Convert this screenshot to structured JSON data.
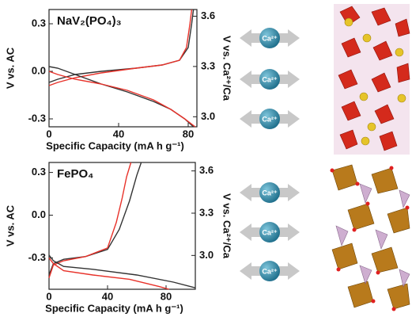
{
  "chart_data": [
    {
      "type": "line",
      "title": "NaV₂(PO₄)₃",
      "x_label": "Specific Capacity (mA h g⁻¹)",
      "y_label": "V vs. AC",
      "y2_label": "V vs. Ca²⁺/Ca",
      "xlim": [
        0,
        85
      ],
      "xticks": [
        0,
        40,
        80
      ],
      "ylim": [
        -0.35,
        0.39
      ],
      "yticks": [
        -0.3,
        {
          "value": 0,
          "label": "0.0"
        },
        0.3
      ],
      "y2lim": [
        2.94,
        3.64
      ],
      "y2ticks": [
        {
          "value": 3,
          "label": "3.0"
        },
        3.3,
        3.6
      ],
      "series": [
        {
          "color": "#333333",
          "x": [
            0,
            5,
            15,
            30,
            50,
            65,
            75,
            80,
            82,
            83
          ],
          "values": [
            -0.07,
            -0.05,
            -0.02,
            0.0,
            0.02,
            0.04,
            0.07,
            0.15,
            0.3,
            0.39
          ]
        },
        {
          "color": "#e8322a",
          "x": [
            0,
            5,
            15,
            30,
            50,
            65,
            75,
            79,
            81,
            82
          ],
          "values": [
            -0.09,
            -0.07,
            -0.04,
            -0.01,
            0.02,
            0.04,
            0.07,
            0.15,
            0.3,
            0.39
          ]
        },
        {
          "color": "#333333",
          "x": [
            0,
            5,
            15,
            30,
            45,
            60,
            70,
            78,
            83
          ],
          "values": [
            0.03,
            0.02,
            -0.02,
            -0.08,
            -0.13,
            -0.19,
            -0.24,
            -0.3,
            -0.35
          ]
        },
        {
          "color": "#e8322a",
          "x": [
            0,
            5,
            15,
            30,
            45,
            60,
            70,
            78,
            84
          ],
          "values": [
            0.0,
            -0.02,
            -0.05,
            -0.08,
            -0.12,
            -0.18,
            -0.24,
            -0.3,
            -0.35
          ]
        }
      ]
    },
    {
      "type": "line",
      "title": "FePO₄",
      "x_label": "Specific Capacity (mA h g⁻¹)",
      "y_label": "V vs. AC",
      "y2_label": "V vs. Ca²⁺/Ca",
      "xlim": [
        0,
        100
      ],
      "xticks": [
        0,
        40,
        80
      ],
      "ylim": [
        -0.52,
        0.37
      ],
      "yticks": [
        -0.3,
        {
          "value": 0,
          "label": "0.0"
        },
        0.3
      ],
      "y2lim": [
        2.76,
        3.66
      ],
      "y2ticks": [
        {
          "value": 3,
          "label": "3.0"
        },
        3.3,
        3.6
      ],
      "series": [
        {
          "color": "#333333",
          "x": [
            0,
            3,
            10,
            25,
            40,
            48,
            55,
            60,
            63
          ],
          "values": [
            -0.42,
            -0.34,
            -0.31,
            -0.29,
            -0.24,
            -0.1,
            0.1,
            0.28,
            0.37
          ]
        },
        {
          "color": "#e8322a",
          "x": [
            0,
            3,
            10,
            25,
            40,
            46,
            50,
            53,
            56
          ],
          "values": [
            -0.44,
            -0.35,
            -0.32,
            -0.29,
            -0.23,
            -0.05,
            0.12,
            0.27,
            0.37
          ]
        },
        {
          "color": "#333333",
          "x": [
            0,
            3,
            10,
            30,
            60,
            85,
            100
          ],
          "values": [
            -0.28,
            -0.32,
            -0.36,
            -0.38,
            -0.42,
            -0.47,
            -0.51
          ]
        },
        {
          "color": "#e8322a",
          "x": [
            0,
            3,
            10,
            30,
            55,
            75,
            82
          ],
          "values": [
            -0.3,
            -0.34,
            -0.39,
            -0.42,
            -0.45,
            -0.5,
            -0.52
          ]
        }
      ]
    }
  ],
  "ion_label": "Ca²⁺"
}
